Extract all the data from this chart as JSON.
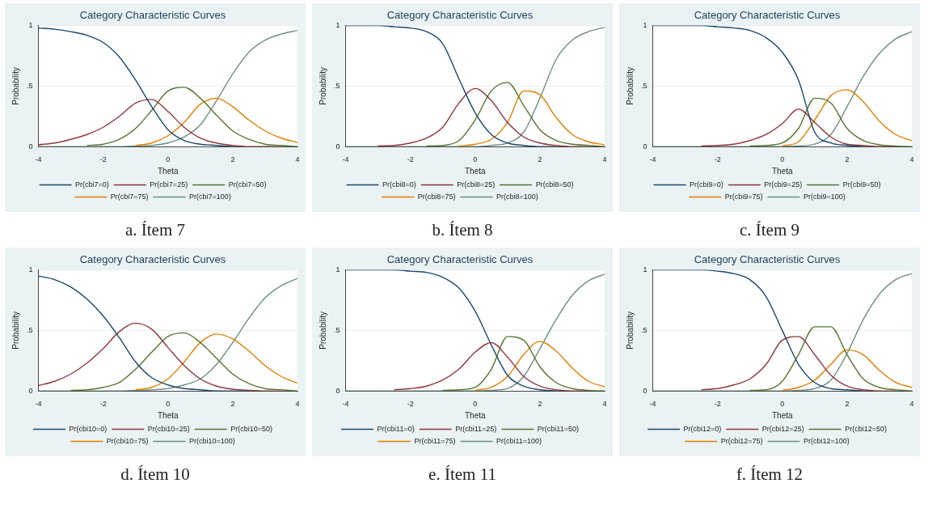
{
  "chart_data": [
    {
      "type": "line",
      "title": "Category Characteristic Curves",
      "xlabel": "Theta",
      "ylabel": "Probability",
      "annotations": [
        "a. Ítem 7"
      ],
      "xlim": [
        -4,
        4
      ],
      "xticks": [
        -4,
        -2,
        0,
        2,
        4
      ],
      "ylim": [
        0,
        1
      ],
      "yticks": [
        {
          "value": 0,
          "label": "0"
        },
        {
          "value": 0.5,
          "label": ".5"
        },
        {
          "value": 1,
          "label": "1"
        }
      ],
      "grid": "y",
      "legend": "bottom",
      "x": [
        -4,
        -3.5,
        -3,
        -2.5,
        -2,
        -1.5,
        -1,
        -0.5,
        0,
        0.5,
        1,
        1.5,
        2,
        2.5,
        3,
        3.5,
        4
      ],
      "series": [
        {
          "name": "Pr(cbi7=0)",
          "color": "#1a476f",
          "values": [
            0.98,
            0.97,
            0.95,
            0.92,
            0.86,
            0.74,
            0.55,
            0.33,
            0.14,
            0.05,
            0.02,
            0.01,
            0,
            null,
            null,
            null,
            null
          ]
        },
        {
          "name": "Pr(cbi7=25)",
          "color": "#90353b",
          "values": [
            0.015,
            0.03,
            0.06,
            0.1,
            0.16,
            0.25,
            0.36,
            0.39,
            0.29,
            0.16,
            0.07,
            0.03,
            0.01,
            0,
            0,
            0,
            null
          ]
        },
        {
          "name": "Pr(cbi7=50)",
          "color": "#55752f",
          "values": [
            null,
            null,
            null,
            0.01,
            0.02,
            0.06,
            0.15,
            0.3,
            0.46,
            0.49,
            0.4,
            0.26,
            0.13,
            0.06,
            0.02,
            0.01,
            0
          ]
        },
        {
          "name": "Pr(cbi7=75)",
          "color": "#e37e00",
          "values": [
            null,
            null,
            null,
            null,
            null,
            null,
            0.01,
            0.03,
            0.09,
            0.2,
            0.35,
            0.4,
            0.33,
            0.22,
            0.13,
            0.07,
            0.035
          ]
        },
        {
          "name": "Pr(cbi7=100)",
          "color": "#6e8e84",
          "values": [
            0,
            0,
            0,
            0,
            0,
            0,
            0.005,
            0.01,
            0.03,
            0.08,
            0.18,
            0.38,
            0.6,
            0.78,
            0.88,
            0.93,
            0.96
          ]
        }
      ]
    },
    {
      "type": "line",
      "title": "Category Characteristic Curves",
      "xlabel": "Theta",
      "ylabel": "Probability",
      "annotations": [
        "b. Ítem 8"
      ],
      "xlim": [
        -4,
        4
      ],
      "xticks": [
        -4,
        -2,
        0,
        2,
        4
      ],
      "ylim": [
        0,
        1
      ],
      "yticks": [
        {
          "value": 0,
          "label": "0"
        },
        {
          "value": 0.5,
          "label": ".5"
        },
        {
          "value": 1,
          "label": "1"
        }
      ],
      "grid": "y",
      "legend": "bottom",
      "x": [
        -4,
        -3.5,
        -3,
        -2.5,
        -2,
        -1.5,
        -1,
        -0.5,
        0,
        0.5,
        1,
        1.5,
        2,
        2.5,
        3,
        3.5,
        4
      ],
      "series": [
        {
          "name": "Pr(cbi8=0)",
          "color": "#1a476f",
          "values": [
            1,
            1,
            1,
            0.99,
            0.98,
            0.95,
            0.85,
            0.56,
            0.28,
            0.1,
            0.03,
            0.01,
            0,
            0,
            null,
            null,
            null
          ]
        },
        {
          "name": "Pr(cbi8=25)",
          "color": "#90353b",
          "values": [
            null,
            null,
            0.005,
            0.01,
            0.03,
            0.07,
            0.16,
            0.36,
            0.48,
            0.38,
            0.2,
            0.08,
            0.03,
            0.01,
            0,
            0,
            null
          ]
        },
        {
          "name": "Pr(cbi8=50)",
          "color": "#55752f",
          "values": [
            null,
            null,
            null,
            null,
            null,
            0.005,
            0.01,
            0.05,
            0.22,
            0.46,
            0.53,
            0.34,
            0.14,
            0.05,
            0.02,
            0.01,
            0
          ]
        },
        {
          "name": "Pr(cbi8=75)",
          "color": "#e37e00",
          "values": [
            null,
            null,
            null,
            null,
            null,
            null,
            null,
            0.005,
            0.02,
            0.06,
            0.2,
            0.46,
            0.43,
            0.24,
            0.1,
            0.04,
            0.015
          ]
        },
        {
          "name": "Pr(cbi8=100)",
          "color": "#6e8e84",
          "values": [
            0,
            0,
            0,
            0,
            0,
            0,
            0,
            0,
            0,
            0.01,
            0.03,
            0.12,
            0.4,
            0.72,
            0.88,
            0.95,
            0.985
          ]
        }
      ]
    },
    {
      "type": "line",
      "title": "Category Characteristic Curves",
      "xlabel": "Theta",
      "ylabel": "Probability",
      "annotations": [
        "c. Ítem 9"
      ],
      "xlim": [
        -4,
        4
      ],
      "xticks": [
        -4,
        -2,
        0,
        2,
        4
      ],
      "ylim": [
        0,
        1
      ],
      "yticks": [
        {
          "value": 0,
          "label": "0"
        },
        {
          "value": 0.5,
          "label": ".5"
        },
        {
          "value": 1,
          "label": "1"
        }
      ],
      "grid": "y",
      "legend": "bottom",
      "x": [
        -4,
        -3.5,
        -3,
        -2.5,
        -2,
        -1.5,
        -1,
        -0.5,
        0,
        0.5,
        1,
        1.5,
        2,
        2.5,
        3,
        3.5,
        4
      ],
      "series": [
        {
          "name": "Pr(cbi9=0)",
          "color": "#1a476f",
          "values": [
            1,
            1,
            1,
            1,
            0.99,
            0.98,
            0.96,
            0.9,
            0.78,
            0.55,
            0.12,
            0.03,
            0.01,
            0,
            null,
            null,
            null
          ]
        },
        {
          "name": "Pr(cbi9=25)",
          "color": "#90353b",
          "values": [
            null,
            null,
            null,
            0.005,
            0.01,
            0.02,
            0.05,
            0.1,
            0.19,
            0.31,
            0.2,
            0.08,
            0.02,
            0.01,
            0,
            0,
            null
          ]
        },
        {
          "name": "Pr(cbi9=50)",
          "color": "#55752f",
          "values": [
            null,
            null,
            null,
            null,
            null,
            null,
            0.005,
            0.01,
            0.03,
            0.15,
            0.4,
            0.36,
            0.15,
            0.05,
            0.015,
            0.005,
            0
          ]
        },
        {
          "name": "Pr(cbi9=75)",
          "color": "#e37e00",
          "values": [
            null,
            null,
            null,
            null,
            null,
            null,
            null,
            null,
            0.005,
            0.04,
            0.22,
            0.42,
            0.47,
            0.37,
            0.21,
            0.1,
            0.05
          ]
        },
        {
          "name": "Pr(cbi9=100)",
          "color": "#6e8e84",
          "values": [
            0,
            0,
            0,
            0,
            0,
            0,
            0,
            0,
            0,
            0.005,
            0.02,
            0.1,
            0.33,
            0.58,
            0.77,
            0.89,
            0.95
          ]
        }
      ]
    },
    {
      "type": "line",
      "title": "Category Characteristic Curves",
      "xlabel": "Theta",
      "ylabel": "Probability",
      "annotations": [
        "d. Ítem 10"
      ],
      "xlim": [
        -4,
        4
      ],
      "xticks": [
        -4,
        -2,
        0,
        2,
        4
      ],
      "ylim": [
        0,
        1
      ],
      "yticks": [
        {
          "value": 0,
          "label": "0"
        },
        {
          "value": 0.5,
          "label": ".5"
        },
        {
          "value": 1,
          "label": "1"
        }
      ],
      "grid": "y",
      "legend": "bottom",
      "x": [
        -4,
        -3.5,
        -3,
        -2.5,
        -2,
        -1.5,
        -1,
        -0.5,
        0,
        0.5,
        1,
        1.5,
        2,
        2.5,
        3,
        3.5,
        4
      ],
      "series": [
        {
          "name": "Pr(cbi10=0)",
          "color": "#1a476f",
          "values": [
            0.95,
            0.92,
            0.86,
            0.76,
            0.62,
            0.44,
            0.24,
            0.11,
            0.05,
            0.02,
            0.01,
            0,
            0,
            0,
            null,
            null,
            null
          ]
        },
        {
          "name": "Pr(cbi10=25)",
          "color": "#90353b",
          "values": [
            0.045,
            0.08,
            0.14,
            0.23,
            0.35,
            0.49,
            0.56,
            0.51,
            0.36,
            0.21,
            0.1,
            0.04,
            0.015,
            0.005,
            0,
            0,
            null
          ]
        },
        {
          "name": "Pr(cbi10=50)",
          "color": "#55752f",
          "values": [
            null,
            null,
            0.005,
            0.01,
            0.03,
            0.07,
            0.18,
            0.32,
            0.45,
            0.48,
            0.4,
            0.27,
            0.14,
            0.06,
            0.02,
            0.01,
            0
          ]
        },
        {
          "name": "Pr(cbi10=75)",
          "color": "#e37e00",
          "values": [
            null,
            null,
            null,
            null,
            null,
            null,
            0.01,
            0.03,
            0.1,
            0.24,
            0.4,
            0.47,
            0.43,
            0.33,
            0.21,
            0.12,
            0.065
          ]
        },
        {
          "name": "Pr(cbi10=100)",
          "color": "#6e8e84",
          "values": [
            0,
            0,
            0,
            0,
            0,
            0,
            0.005,
            0.01,
            0.02,
            0.05,
            0.1,
            0.22,
            0.4,
            0.6,
            0.77,
            0.87,
            0.93
          ]
        }
      ]
    },
    {
      "type": "line",
      "title": "Category Characteristic Curves",
      "xlabel": "Theta",
      "ylabel": "Probability",
      "annotations": [
        "e. Ítem 11"
      ],
      "xlim": [
        -4,
        4
      ],
      "xticks": [
        -4,
        -2,
        0,
        2,
        4
      ],
      "ylim": [
        0,
        1
      ],
      "yticks": [
        {
          "value": 0,
          "label": "0"
        },
        {
          "value": 0.5,
          "label": ".5"
        },
        {
          "value": 1,
          "label": "1"
        }
      ],
      "grid": "y",
      "legend": "bottom",
      "x": [
        -4,
        -3.5,
        -3,
        -2.5,
        -2,
        -1.5,
        -1,
        -0.5,
        0,
        0.5,
        1,
        1.5,
        2,
        2.5,
        3,
        3.5,
        4
      ],
      "series": [
        {
          "name": "Pr(cbi11=0)",
          "color": "#1a476f",
          "values": [
            1,
            1,
            1,
            1,
            0.99,
            0.98,
            0.94,
            0.85,
            0.66,
            0.38,
            0.13,
            0.04,
            0.01,
            0,
            null,
            null,
            null
          ]
        },
        {
          "name": "Pr(cbi11=25)",
          "color": "#90353b",
          "values": [
            null,
            null,
            null,
            0.01,
            0.02,
            0.04,
            0.09,
            0.18,
            0.32,
            0.4,
            0.28,
            0.12,
            0.04,
            0.01,
            0,
            0,
            null
          ]
        },
        {
          "name": "Pr(cbi11=50)",
          "color": "#55752f",
          "values": [
            null,
            null,
            null,
            null,
            null,
            null,
            0.005,
            0.01,
            0.03,
            0.18,
            0.45,
            0.42,
            0.2,
            0.07,
            0.02,
            0.005,
            0
          ]
        },
        {
          "name": "Pr(cbi11=75)",
          "color": "#e37e00",
          "values": [
            null,
            null,
            null,
            null,
            null,
            null,
            null,
            null,
            0.005,
            0.03,
            0.12,
            0.3,
            0.41,
            0.33,
            0.19,
            0.08,
            0.035
          ]
        },
        {
          "name": "Pr(cbi11=100)",
          "color": "#6e8e84",
          "values": [
            0,
            0,
            0,
            0,
            0,
            0,
            0,
            0,
            0,
            0.005,
            0.02,
            0.12,
            0.35,
            0.59,
            0.79,
            0.91,
            0.965
          ]
        }
      ]
    },
    {
      "type": "line",
      "title": "Category Characteristic Curves",
      "xlabel": "Theta",
      "ylabel": "Probability",
      "annotations": [
        "f. Ítem 12"
      ],
      "xlim": [
        -4,
        4
      ],
      "xticks": [
        -4,
        -2,
        0,
        2,
        4
      ],
      "ylim": [
        0,
        1
      ],
      "yticks": [
        {
          "value": 0,
          "label": "0"
        },
        {
          "value": 0.5,
          "label": ".5"
        },
        {
          "value": 1,
          "label": "1"
        }
      ],
      "grid": "y",
      "legend": "bottom",
      "x": [
        -4,
        -3.5,
        -3,
        -2.5,
        -2,
        -1.5,
        -1,
        -0.5,
        0,
        0.5,
        1,
        1.5,
        2,
        2.5,
        3,
        3.5,
        4
      ],
      "series": [
        {
          "name": "Pr(cbi12=0)",
          "color": "#1a476f",
          "values": [
            1,
            1,
            1,
            1,
            0.99,
            0.97,
            0.92,
            0.78,
            0.5,
            0.22,
            0.07,
            0.02,
            0.01,
            0,
            null,
            null,
            null
          ]
        },
        {
          "name": "Pr(cbi12=25)",
          "color": "#90353b",
          "values": [
            null,
            null,
            null,
            0.01,
            0.02,
            0.05,
            0.1,
            0.22,
            0.42,
            0.45,
            0.3,
            0.13,
            0.04,
            0.01,
            0,
            0,
            null
          ]
        },
        {
          "name": "Pr(cbi12=50)",
          "color": "#55752f",
          "values": [
            null,
            null,
            null,
            null,
            null,
            null,
            0.005,
            0.01,
            0.08,
            0.3,
            0.53,
            0.53,
            0.3,
            0.1,
            0.03,
            0.01,
            0
          ]
        },
        {
          "name": "Pr(cbi12=75)",
          "color": "#e37e00",
          "values": [
            null,
            null,
            null,
            null,
            null,
            null,
            null,
            null,
            0.005,
            0.03,
            0.09,
            0.22,
            0.34,
            0.3,
            0.17,
            0.07,
            0.03
          ]
        },
        {
          "name": "Pr(cbi12=100)",
          "color": "#6e8e84",
          "values": [
            0,
            0,
            0,
            0,
            0,
            0,
            0,
            0,
            0,
            0.005,
            0.02,
            0.09,
            0.31,
            0.59,
            0.8,
            0.92,
            0.97
          ]
        }
      ]
    }
  ]
}
